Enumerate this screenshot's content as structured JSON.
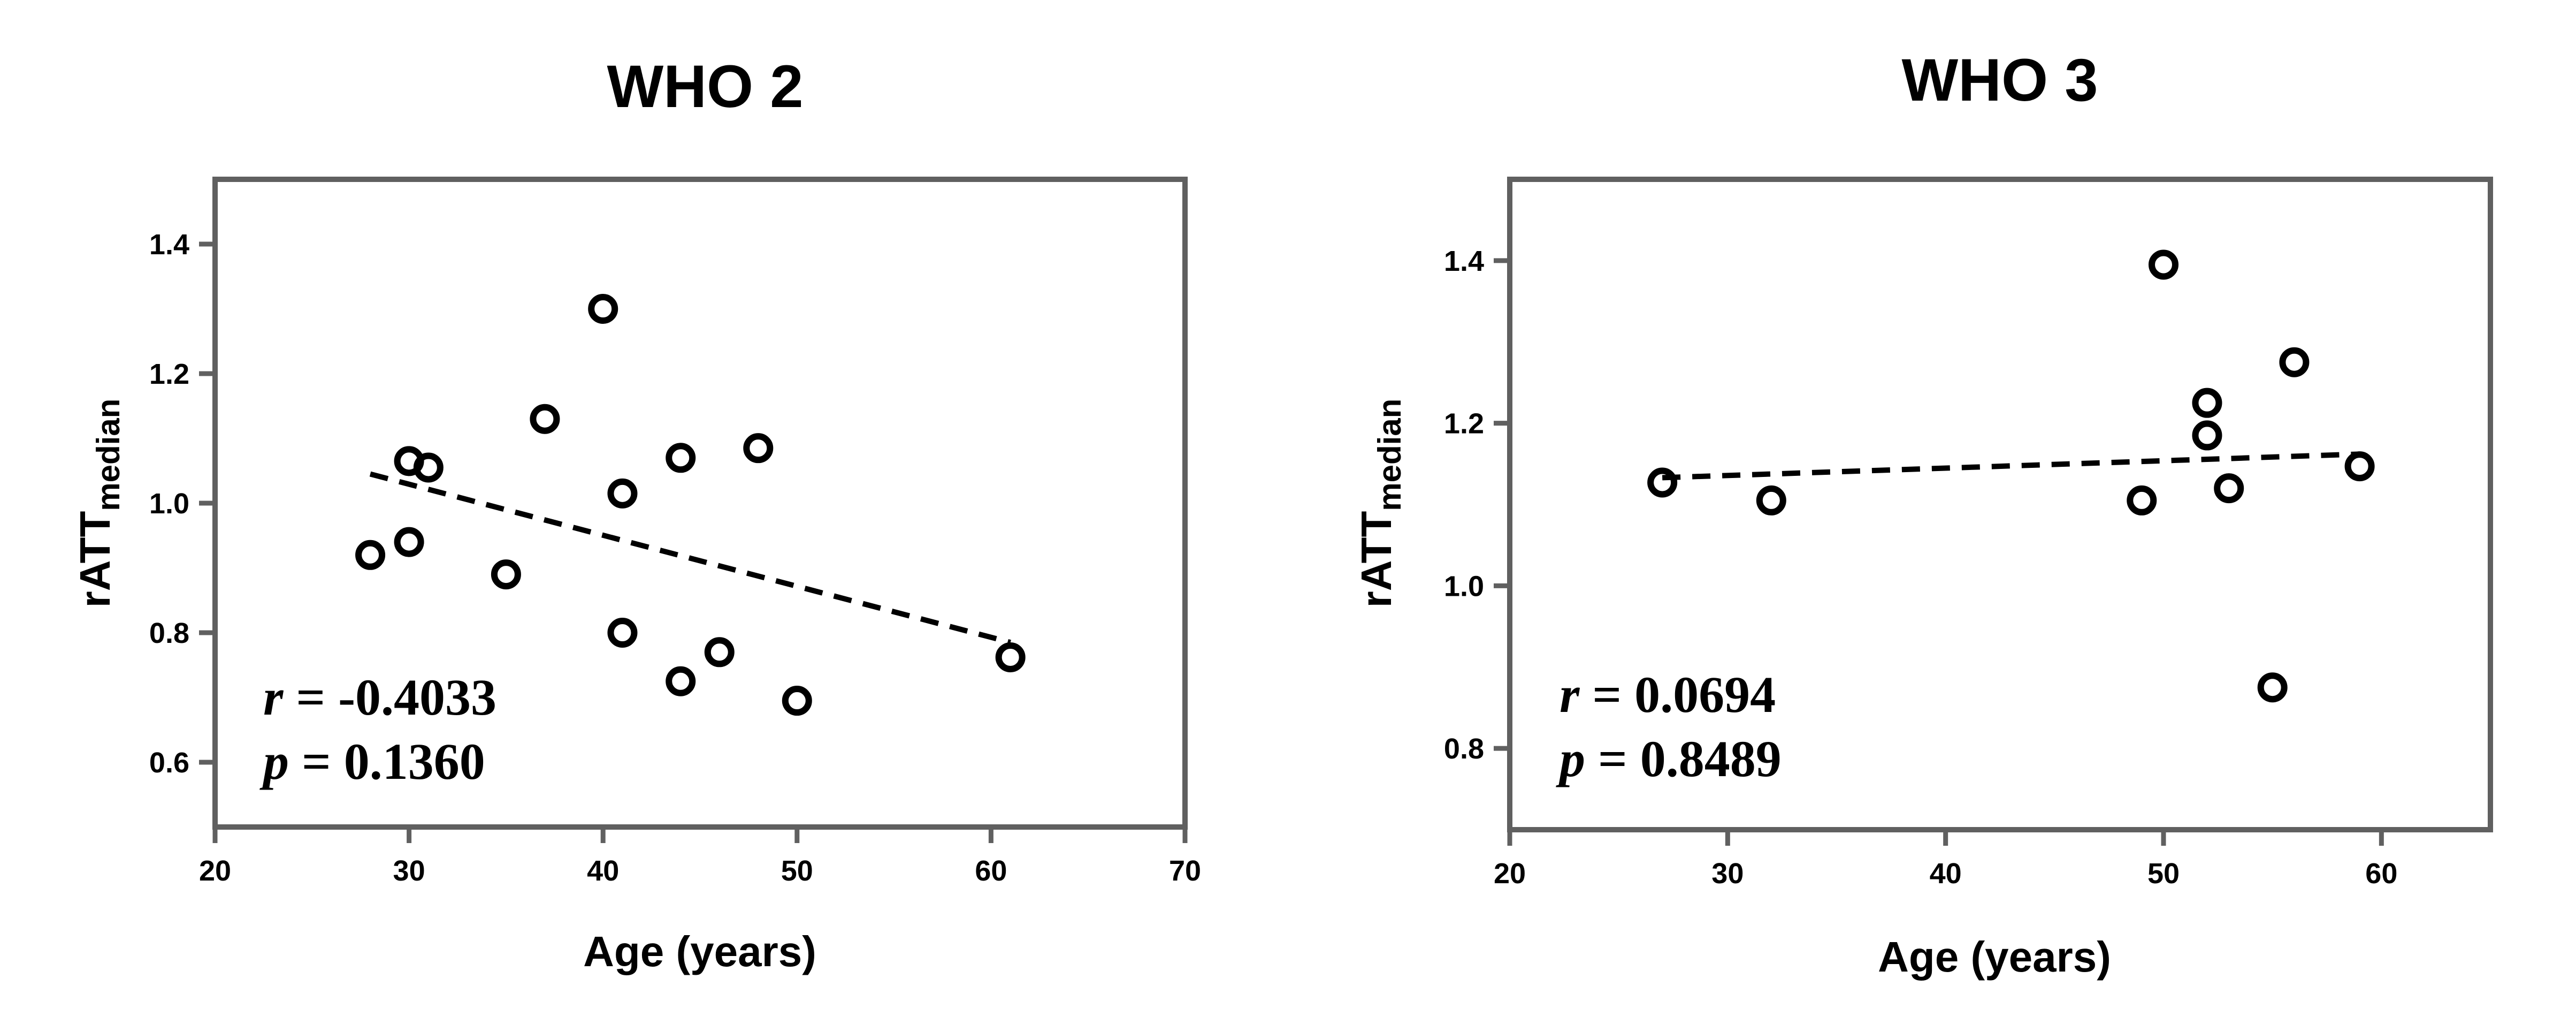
{
  "chart_data": [
    {
      "type": "scatter",
      "title": "WHO 2",
      "xlabel": "Age (years)",
      "ylabel": "rATT",
      "ylabel_sub": "median",
      "xlim": [
        20,
        70
      ],
      "ylim": [
        0.5,
        1.5
      ],
      "xticks": [
        20,
        30,
        40,
        50,
        60,
        70
      ],
      "xtick_labels": [
        "20",
        "30",
        "40",
        "50",
        "60",
        "70"
      ],
      "yticks": [
        0.6,
        0.8,
        1.0,
        1.2,
        1.4
      ],
      "ytick_labels": [
        "0.6",
        "0.8",
        "1.0",
        "1.2",
        "1.4"
      ],
      "x": [
        28,
        30,
        30,
        31,
        35,
        37,
        40,
        41,
        41,
        44,
        44,
        46,
        48,
        50,
        61
      ],
      "y": [
        0.92,
        1.065,
        0.94,
        1.055,
        0.89,
        1.13,
        1.3,
        1.015,
        0.8,
        1.07,
        0.725,
        0.77,
        1.085,
        0.695,
        0.762
      ],
      "trendline": {
        "x": [
          28,
          61
        ],
        "y": [
          1.045,
          0.785
        ],
        "style": "dashed"
      },
      "stats": {
        "r_symbol": "r",
        "r_value": "= -0.4033",
        "p_symbol": "p",
        "p_value": "= 0.1360"
      },
      "grid": false
    },
    {
      "type": "scatter",
      "title": "WHO 3",
      "xlabel": "Age (years)",
      "ylabel": "rATT",
      "ylabel_sub": "median",
      "xlim": [
        20,
        65
      ],
      "ylim": [
        0.7,
        1.5
      ],
      "xticks": [
        20,
        30,
        40,
        50,
        60
      ],
      "xtick_labels": [
        "20",
        "30",
        "40",
        "50",
        "60"
      ],
      "yticks": [
        0.8,
        1.0,
        1.2,
        1.4
      ],
      "ytick_labels": [
        "0.8",
        "1.0",
        "1.2",
        "1.4"
      ],
      "x": [
        27,
        32,
        49,
        50,
        52,
        52,
        53,
        55,
        56,
        59
      ],
      "y": [
        1.127,
        1.105,
        1.105,
        1.395,
        1.225,
        1.185,
        1.12,
        0.875,
        1.275,
        1.147
      ],
      "trendline": {
        "x": [
          27,
          59
        ],
        "y": [
          1.133,
          1.162
        ],
        "style": "dashed"
      },
      "stats": {
        "r_symbol": "r",
        "r_value": "= 0.0694",
        "p_symbol": "p",
        "p_value": "= 0.8489"
      },
      "grid": false
    }
  ]
}
